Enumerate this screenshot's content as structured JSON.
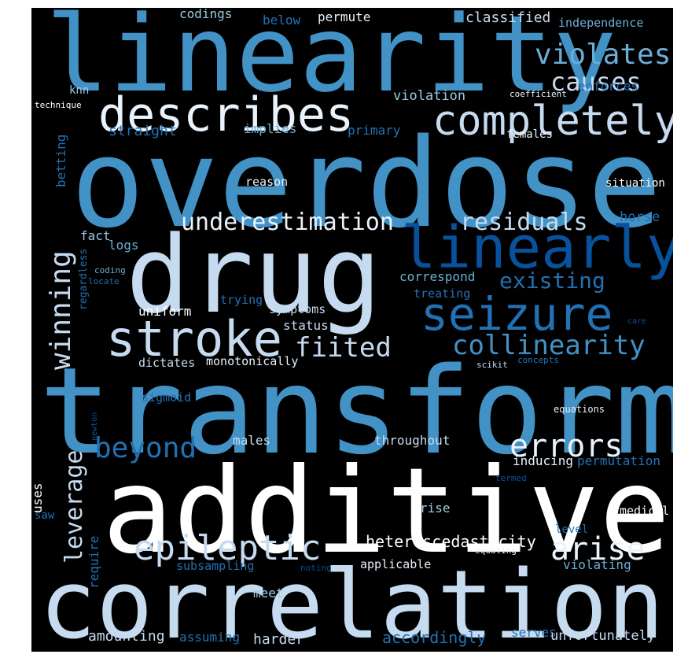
{
  "palette": {
    "background": "#000000",
    "white": "#ffffff",
    "pale": "#eaf2fb",
    "light": "#c6dbef",
    "sky": "#9ecae1",
    "mid": "#6baed6",
    "blue": "#4292c6",
    "strong": "#2171b5",
    "deep": "#08519c",
    "navy": "#083a7a"
  },
  "words": [
    {
      "text": "linearity",
      "color": "#4292c6"
    },
    {
      "text": "overdose",
      "color": "#4292c6"
    },
    {
      "text": "drug",
      "color": "#c6dbef"
    },
    {
      "text": "transform",
      "color": "#4292c6"
    },
    {
      "text": "additive",
      "color": "#ffffff"
    },
    {
      "text": "correlation",
      "color": "#c6dbef"
    },
    {
      "text": "describes",
      "color": "#eaf2fb"
    },
    {
      "text": "completely",
      "color": "#c6dbef"
    },
    {
      "text": "violates",
      "color": "#6baed6"
    },
    {
      "text": "causes",
      "color": "#c6dbef"
    },
    {
      "text": "classified",
      "color": "#c6dbef"
    },
    {
      "text": "linearly",
      "color": "#08519c"
    },
    {
      "text": "seizure",
      "color": "#2171b5"
    },
    {
      "text": "stroke",
      "color": "#c6dbef"
    },
    {
      "text": "fiited",
      "color": "#c6dbef"
    },
    {
      "text": "collinearity",
      "color": "#4292c6"
    },
    {
      "text": "existing",
      "color": "#2171b5"
    },
    {
      "text": "residuals",
      "color": "#c6dbef"
    },
    {
      "text": "underestimation",
      "color": "#eaf2fb"
    },
    {
      "text": "winning",
      "color": "#c6dbef"
    },
    {
      "text": "epileptic",
      "color": "#c6dbef"
    },
    {
      "text": "arise",
      "color": "#eaf2fb"
    },
    {
      "text": "errors",
      "color": "#eaf2fb"
    },
    {
      "text": "beyond",
      "color": "#2171b5"
    },
    {
      "text": "leverage",
      "color": "#c6dbef"
    },
    {
      "text": "heteroscedasticity",
      "color": "#ffffff"
    },
    {
      "text": "codings",
      "color": "#9ecae1"
    },
    {
      "text": "below",
      "color": "#2171b5"
    },
    {
      "text": "permute",
      "color": "#eaf2fb"
    },
    {
      "text": "independence",
      "color": "#6baed6"
    },
    {
      "text": "knn",
      "color": "#9ecae1"
    },
    {
      "text": "technique",
      "color": "#ffffff"
    },
    {
      "text": "violation",
      "color": "#9ecae1"
    },
    {
      "text": "coefficient",
      "color": "#eaf2fb"
    },
    {
      "text": "enforces",
      "color": "#2171b5"
    },
    {
      "text": "straight",
      "color": "#2171b5"
    },
    {
      "text": "implies",
      "color": "#6baed6"
    },
    {
      "text": "primary",
      "color": "#2171b5"
    },
    {
      "text": "females",
      "color": "#eaf2fb"
    },
    {
      "text": "betting",
      "color": "#2171b5"
    },
    {
      "text": "reason",
      "color": "#eaf2fb"
    },
    {
      "text": "situation",
      "color": "#ffffff"
    },
    {
      "text": "horse",
      "color": "#2171b5"
    },
    {
      "text": "logs",
      "color": "#6baed6"
    },
    {
      "text": "fact",
      "color": "#9ecae1"
    },
    {
      "text": "coding",
      "color": "#6baed6"
    },
    {
      "text": "locate",
      "color": "#2171b5"
    },
    {
      "text": "regardless",
      "color": "#2171b5"
    },
    {
      "text": "correspond",
      "color": "#6baed6"
    },
    {
      "text": "treating",
      "color": "#2171b5"
    },
    {
      "text": "uniform",
      "color": "#ffffff"
    },
    {
      "text": "trying",
      "color": "#2171b5"
    },
    {
      "text": "symptoms",
      "color": "#c6dbef"
    },
    {
      "text": "status",
      "color": "#c6dbef"
    },
    {
      "text": "care",
      "color": "#08519c"
    },
    {
      "text": "dictates",
      "color": "#c6dbef"
    },
    {
      "text": "monotonically",
      "color": "#eaf2fb"
    },
    {
      "text": "scikit",
      "color": "#c6dbef"
    },
    {
      "text": "concepts",
      "color": "#2171b5"
    },
    {
      "text": "sigmoid",
      "color": "#2171b5"
    },
    {
      "text": "newton",
      "color": "#08519c"
    },
    {
      "text": "equations",
      "color": "#eaf2fb"
    },
    {
      "text": "males",
      "color": "#c6dbef"
    },
    {
      "text": "throughout",
      "color": "#c6dbef"
    },
    {
      "text": "inducing",
      "color": "#eaf2fb"
    },
    {
      "text": "permutation",
      "color": "#2171b5"
    },
    {
      "text": "uses",
      "color": "#ffffff"
    },
    {
      "text": "saw",
      "color": "#2171b5"
    },
    {
      "text": "termed",
      "color": "#08519c"
    },
    {
      "text": "rise",
      "color": "#9ecae1"
    },
    {
      "text": "medical",
      "color": "#ffffff"
    },
    {
      "text": "level",
      "color": "#2171b5"
    },
    {
      "text": "equating",
      "color": "#eaf2fb"
    },
    {
      "text": "require",
      "color": "#2171b5"
    },
    {
      "text": "subsampling",
      "color": "#2171b5"
    },
    {
      "text": "noting",
      "color": "#08519c"
    },
    {
      "text": "applicable",
      "color": "#eaf2fb"
    },
    {
      "text": "violating",
      "color": "#6baed6"
    },
    {
      "text": "meet",
      "color": "#9ecae1"
    },
    {
      "text": "amounting",
      "color": "#c6dbef"
    },
    {
      "text": "assuming",
      "color": "#2171b5"
    },
    {
      "text": "harder",
      "color": "#c6dbef"
    },
    {
      "text": "accordingly",
      "color": "#2171b5"
    },
    {
      "text": "serves",
      "color": "#2171b5"
    },
    {
      "text": "unfortunately",
      "color": "#c6dbef"
    }
  ]
}
